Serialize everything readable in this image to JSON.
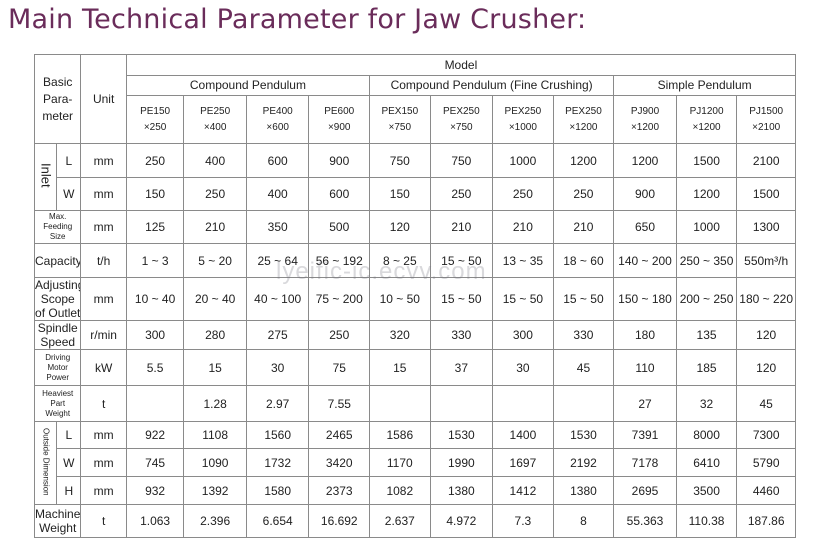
{
  "title": "Main Technical Parameter for Jaw Crusher:",
  "watermark": "lyeific-ic.ecvv.com",
  "header": {
    "basic_parameter": "Basic\nPara-\nmeter",
    "unit": "Unit",
    "model": "Model",
    "groups": [
      "Compound Pendulum",
      "Compound Pendulum (Fine Crushing)",
      "Simple Pendulum"
    ],
    "models": [
      [
        "PE150",
        "×250"
      ],
      [
        "PE250",
        "×400"
      ],
      [
        "PE400",
        "×600"
      ],
      [
        "PE600",
        "×900"
      ],
      [
        "PEX150",
        "×750"
      ],
      [
        "PEX250",
        "×750"
      ],
      [
        "PEX250",
        "×1000"
      ],
      [
        "PEX250",
        "×1200"
      ],
      [
        "PJ900",
        "×1200"
      ],
      [
        "PJ1200",
        "×1200"
      ],
      [
        "PJ1500",
        "×2100"
      ]
    ]
  },
  "groups": {
    "inlet": "Inlet",
    "outside_dimension": "Outside Dimension"
  },
  "rows": {
    "inlet_l": {
      "sub": "L",
      "unit": "mm",
      "values": [
        "250",
        "400",
        "600",
        "900",
        "750",
        "750",
        "1000",
        "1200",
        "1200",
        "1500",
        "2100"
      ]
    },
    "inlet_w": {
      "sub": "W",
      "unit": "mm",
      "values": [
        "150",
        "250",
        "400",
        "600",
        "150",
        "250",
        "250",
        "250",
        "900",
        "1200",
        "1500"
      ]
    },
    "max_feeding": {
      "label": "Max.\nFeeding\nSize",
      "unit": "mm",
      "values": [
        "125",
        "210",
        "350",
        "500",
        "120",
        "210",
        "210",
        "210",
        "650",
        "1000",
        "1300"
      ]
    },
    "capacity": {
      "label": "Capacity",
      "unit": "t/h",
      "values": [
        "1 ~ 3",
        "5 ~ 20",
        "25 ~ 64",
        "56 ~ 192",
        "8 ~ 25",
        "15 ~ 50",
        "13 ~ 35",
        "18 ~ 60",
        "140 ~ 200",
        "250 ~ 350",
        "550m³/h"
      ]
    },
    "adjusting": {
      "label": "Adjusting\nScope\nof Outlet",
      "unit": "mm",
      "values": [
        "10 ~ 40",
        "20 ~ 40",
        "40 ~ 100",
        "75 ~ 200",
        "10 ~ 50",
        "15 ~ 50",
        "15 ~ 50",
        "15 ~ 50",
        "150 ~ 180",
        "200 ~ 250",
        "180 ~ 220"
      ]
    },
    "spindle": {
      "label": "Spindle\nSpeed",
      "unit": "r/min",
      "values": [
        "300",
        "280",
        "275",
        "250",
        "320",
        "330",
        "300",
        "330",
        "180",
        "135",
        "120"
      ]
    },
    "motor": {
      "label": "Driving\nMotor\nPower",
      "unit": "kW",
      "values": [
        "5.5",
        "15",
        "30",
        "75",
        "15",
        "37",
        "30",
        "45",
        "110",
        "185",
        "120"
      ]
    },
    "heaviest": {
      "label": "Heaviest\nPart\nWeight",
      "unit": "t",
      "values": [
        "",
        "1.28",
        "2.97",
        "7.55",
        "",
        "",
        "",
        "",
        "27",
        "32",
        "45"
      ]
    },
    "outside_l": {
      "sub": "L",
      "unit": "mm",
      "values": [
        "922",
        "1108",
        "1560",
        "2465",
        "1586",
        "1530",
        "1400",
        "1530",
        "7391",
        "8000",
        "7300"
      ]
    },
    "outside_w": {
      "sub": "W",
      "unit": "mm",
      "values": [
        "745",
        "1090",
        "1732",
        "3420",
        "1170",
        "1990",
        "1697",
        "2192",
        "7178",
        "6410",
        "5790"
      ]
    },
    "outside_h": {
      "sub": "H",
      "unit": "mm",
      "values": [
        "932",
        "1392",
        "1580",
        "2373",
        "1082",
        "1380",
        "1412",
        "1380",
        "2695",
        "3500",
        "4460"
      ]
    },
    "machine_weight": {
      "label": "Machine\nWeight",
      "unit": "t",
      "values": [
        "1.063",
        "2.396",
        "6.654",
        "16.692",
        "2.637",
        "4.972",
        "7.3",
        "8",
        "55.363",
        "110.38",
        "187.86"
      ]
    }
  }
}
